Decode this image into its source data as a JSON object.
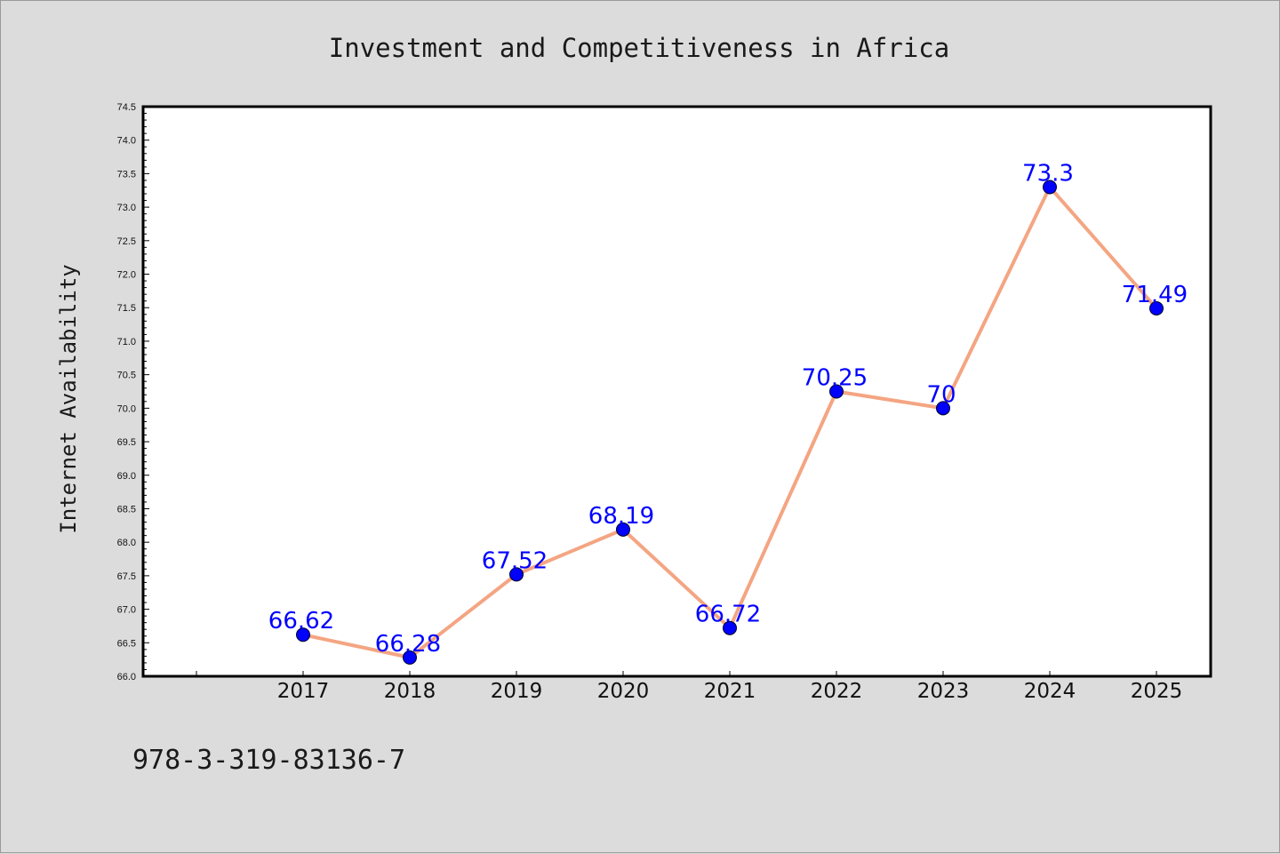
{
  "chart_data": {
    "type": "line",
    "title": "Investment and Competitiveness in Africa",
    "xlabel": "",
    "ylabel": "Internet Availability",
    "categories": [
      "2017",
      "2018",
      "2019",
      "2020",
      "2021",
      "2022",
      "2023",
      "2024",
      "2025"
    ],
    "series": [
      {
        "values": [
          66.62,
          66.28,
          67.52,
          68.19,
          66.72,
          70.25,
          70.0,
          73.3,
          71.49
        ],
        "data_labels": [
          "66.62",
          "66.28",
          "67.52",
          "68.19",
          "66.72",
          "70.25",
          "70",
          "73.3",
          "71.49"
        ],
        "line_color": "#f4a582",
        "marker_color": "#0000ff"
      }
    ],
    "ylim": [
      66.0,
      74.5
    ],
    "yticks": [
      "66.0",
      "66.5",
      "67.0",
      "67.5",
      "68.0",
      "68.5",
      "69.0",
      "69.5",
      "70.0",
      "70.5",
      "71.0",
      "71.5",
      "72.0",
      "72.5",
      "73.0",
      "73.5",
      "74.0",
      "74.5"
    ],
    "grid": false,
    "legend": "none",
    "footnote": "978-3-319-83136-7"
  }
}
